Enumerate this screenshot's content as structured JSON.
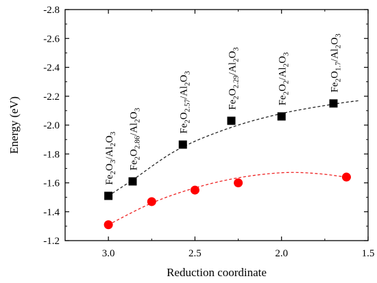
{
  "chart_data": {
    "type": "scatter",
    "xlabel": "Reduction coordinate",
    "ylabel": "Energy (eV)",
    "x_reversed": true,
    "xlim": [
      3.25,
      1.5
    ],
    "ylim": [
      -1.2,
      -2.8
    ],
    "y_reversed": true,
    "xticks": [
      3.0,
      2.5,
      2.0,
      1.5
    ],
    "xtick_labels": [
      "3.0",
      "2.5",
      "2.0",
      "1.5"
    ],
    "yticks": [
      -1.2,
      -1.4,
      -1.6,
      -1.8,
      -2.0,
      -2.2,
      -2.4,
      -2.6,
      -2.8
    ],
    "ytick_labels": [
      "-1.2",
      "-1.4",
      "-1.6",
      "-1.8",
      "-2.0",
      "-2.2",
      "-2.4",
      "-2.6",
      "-2.8"
    ],
    "grid": false,
    "series": [
      {
        "marker": "square",
        "color": "#000000",
        "fit_color": "#222222",
        "points": [
          {
            "x": 3.0,
            "y": -1.51
          },
          {
            "x": 2.86,
            "y": -1.61
          },
          {
            "x": 2.57,
            "y": -1.865
          },
          {
            "x": 2.29,
            "y": -2.03
          },
          {
            "x": 2.0,
            "y": -2.06
          },
          {
            "x": 1.7,
            "y": -2.15
          }
        ],
        "fit_curve": [
          {
            "x": 3.0,
            "y": -1.51
          },
          {
            "x": 2.86,
            "y": -1.62
          },
          {
            "x": 2.6,
            "y": -1.83
          },
          {
            "x": 2.3,
            "y": -1.98
          },
          {
            "x": 2.0,
            "y": -2.08
          },
          {
            "x": 1.7,
            "y": -2.145
          },
          {
            "x": 1.55,
            "y": -2.17
          }
        ]
      },
      {
        "marker": "circle",
        "color": "#ff0000",
        "fit_color": "#ee2222",
        "points": [
          {
            "x": 3.0,
            "y": -1.31
          },
          {
            "x": 2.75,
            "y": -1.47
          },
          {
            "x": 2.5,
            "y": -1.55
          },
          {
            "x": 2.25,
            "y": -1.6
          },
          {
            "x": 1.625,
            "y": -1.64
          }
        ],
        "fit_curve": [
          {
            "x": 3.0,
            "y": -1.31
          },
          {
            "x": 2.75,
            "y": -1.46
          },
          {
            "x": 2.5,
            "y": -1.565
          },
          {
            "x": 2.25,
            "y": -1.635
          },
          {
            "x": 2.0,
            "y": -1.67
          },
          {
            "x": 1.8,
            "y": -1.665
          },
          {
            "x": 1.6,
            "y": -1.635
          }
        ]
      }
    ],
    "annotations": [
      {
        "anchor_x": 3.0,
        "anchor_y": -1.51,
        "parts": [
          [
            "Fe",
            ""
          ],
          [
            "2",
            "sub"
          ],
          [
            "O",
            ""
          ],
          [
            "3",
            "sub"
          ],
          [
            "/Al",
            ""
          ],
          [
            "2",
            "sub"
          ],
          [
            "O",
            ""
          ],
          [
            "3",
            "sub"
          ]
        ]
      },
      {
        "anchor_x": 2.86,
        "anchor_y": -1.61,
        "parts": [
          [
            "Fe",
            ""
          ],
          [
            "2",
            "sub"
          ],
          [
            "O",
            ""
          ],
          [
            "2.86",
            "sub"
          ],
          [
            "/Al",
            ""
          ],
          [
            "2",
            "sub"
          ],
          [
            "O",
            ""
          ],
          [
            "3",
            "sub"
          ]
        ]
      },
      {
        "anchor_x": 2.57,
        "anchor_y": -1.865,
        "parts": [
          [
            "Fe",
            ""
          ],
          [
            "2",
            "sub"
          ],
          [
            "O",
            ""
          ],
          [
            "2.57",
            "sub"
          ],
          [
            "/Al",
            ""
          ],
          [
            "2",
            "sub"
          ],
          [
            "O",
            ""
          ],
          [
            "3",
            "sub"
          ]
        ]
      },
      {
        "anchor_x": 2.29,
        "anchor_y": -2.03,
        "parts": [
          [
            "Fe",
            ""
          ],
          [
            "2",
            "sub"
          ],
          [
            "O",
            ""
          ],
          [
            "2.29",
            "sub"
          ],
          [
            "/Al",
            ""
          ],
          [
            "2",
            "sub"
          ],
          [
            "O",
            ""
          ],
          [
            "3",
            "sub"
          ]
        ]
      },
      {
        "anchor_x": 2.0,
        "anchor_y": -2.06,
        "parts": [
          [
            "Fe",
            ""
          ],
          [
            "2",
            "sub"
          ],
          [
            "O",
            ""
          ],
          [
            "2",
            "sub"
          ],
          [
            "/Al",
            ""
          ],
          [
            "2",
            "sub"
          ],
          [
            "O",
            ""
          ],
          [
            "3",
            "sub"
          ]
        ]
      },
      {
        "anchor_x": 1.7,
        "anchor_y": -2.15,
        "parts": [
          [
            "Fe",
            ""
          ],
          [
            "2",
            "sub"
          ],
          [
            "O",
            ""
          ],
          [
            "1.7",
            "sub"
          ],
          [
            "/Al",
            ""
          ],
          [
            "2",
            "sub"
          ],
          [
            "O",
            ""
          ],
          [
            "3",
            "sub"
          ]
        ]
      }
    ]
  }
}
